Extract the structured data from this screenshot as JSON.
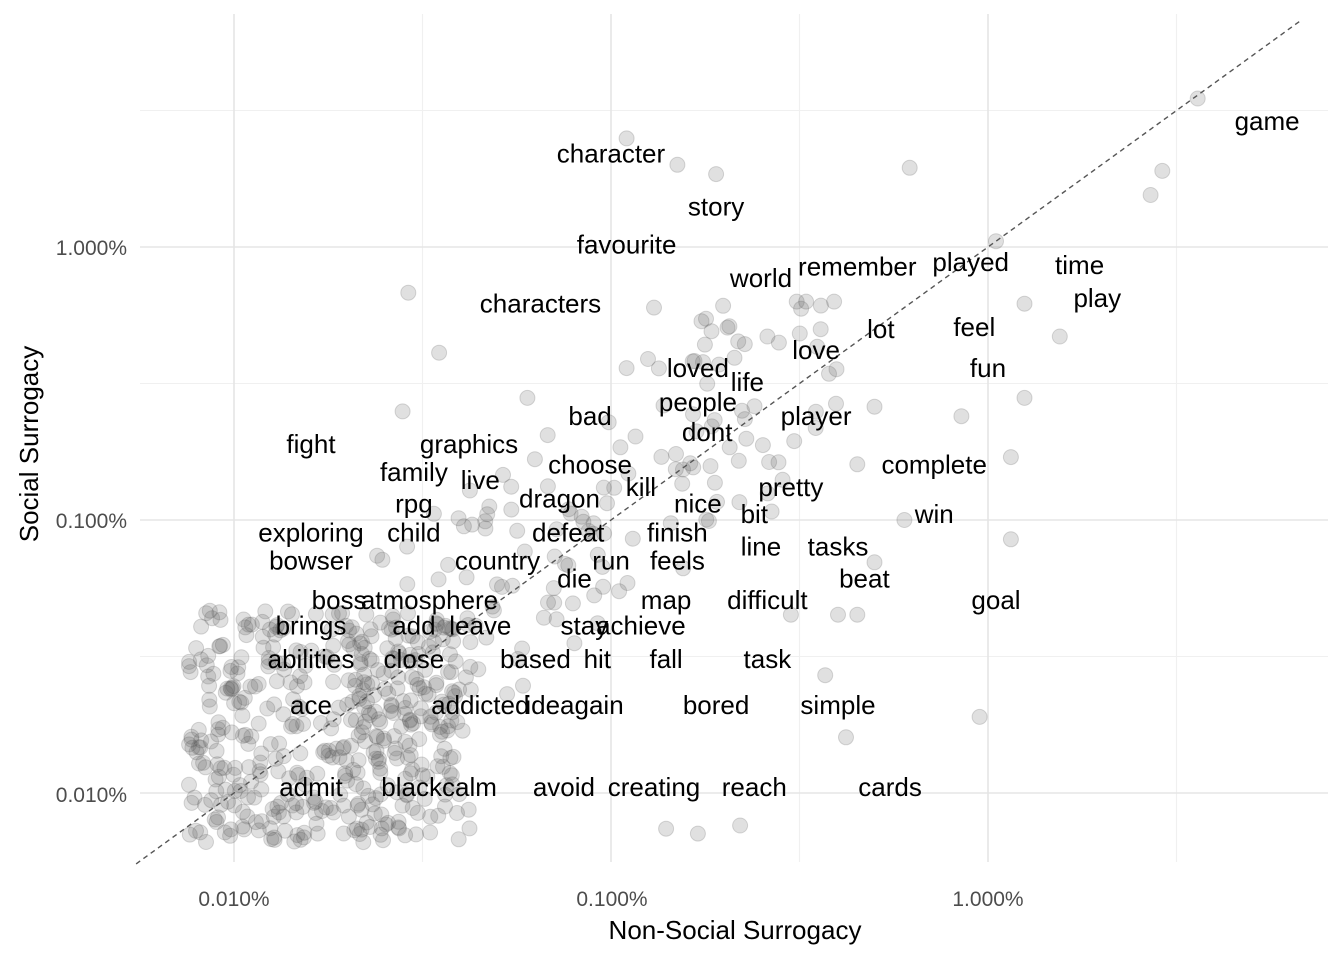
{
  "chart_data": {
    "type": "scatter",
    "title": "",
    "xlabel": "Non-Social Surrogacy",
    "ylabel": "Social Surrogacy",
    "x_scale": "log10",
    "y_scale": "log10",
    "xlim_percent": [
      0.0055,
      7.5
    ],
    "ylim_percent": [
      0.0055,
      6.5
    ],
    "x_major_ticks": [
      0.01,
      0.1,
      1.0
    ],
    "x_tick_labels": [
      "0.010%",
      "0.100%",
      "1.000%"
    ],
    "y_major_ticks": [
      0.01,
      0.1,
      1.0
    ],
    "y_tick_labels": [
      "0.010%",
      "0.100%",
      "1.000%"
    ],
    "reference_line": "y = x (dashed)",
    "labeled_words": [
      {
        "word": "game",
        "x": 5.5,
        "y": 2.9
      },
      {
        "word": "character",
        "x": 0.1,
        "y": 2.2
      },
      {
        "word": "story",
        "x": 0.19,
        "y": 1.41
      },
      {
        "word": "favourite",
        "x": 0.11,
        "y": 1.02
      },
      {
        "word": "characters",
        "x": 0.065,
        "y": 0.62
      },
      {
        "word": "world",
        "x": 0.25,
        "y": 0.77
      },
      {
        "word": "remember",
        "x": 0.45,
        "y": 0.85
      },
      {
        "word": "played",
        "x": 0.9,
        "y": 0.88
      },
      {
        "word": "time",
        "x": 1.75,
        "y": 0.86
      },
      {
        "word": "play",
        "x": 1.95,
        "y": 0.65
      },
      {
        "word": "feel",
        "x": 0.92,
        "y": 0.51
      },
      {
        "word": "lot",
        "x": 0.52,
        "y": 0.5
      },
      {
        "word": "love",
        "x": 0.35,
        "y": 0.42
      },
      {
        "word": "fun",
        "x": 1.0,
        "y": 0.36
      },
      {
        "word": "loved",
        "x": 0.17,
        "y": 0.36
      },
      {
        "word": "life",
        "x": 0.23,
        "y": 0.32
      },
      {
        "word": "bad",
        "x": 0.088,
        "y": 0.24
      },
      {
        "word": "people",
        "x": 0.17,
        "y": 0.27
      },
      {
        "word": "player",
        "x": 0.35,
        "y": 0.24
      },
      {
        "word": "dont",
        "x": 0.18,
        "y": 0.21
      },
      {
        "word": "fight",
        "x": 0.016,
        "y": 0.19
      },
      {
        "word": "graphics",
        "x": 0.042,
        "y": 0.19
      },
      {
        "word": "complete",
        "x": 0.72,
        "y": 0.16
      },
      {
        "word": "family",
        "x": 0.03,
        "y": 0.15
      },
      {
        "word": "live",
        "x": 0.045,
        "y": 0.14
      },
      {
        "word": "choose",
        "x": 0.088,
        "y": 0.16
      },
      {
        "word": "kill",
        "x": 0.12,
        "y": 0.132
      },
      {
        "word": "pretty",
        "x": 0.3,
        "y": 0.132
      },
      {
        "word": "dragon",
        "x": 0.073,
        "y": 0.12
      },
      {
        "word": "rpg",
        "x": 0.03,
        "y": 0.115
      },
      {
        "word": "nice",
        "x": 0.17,
        "y": 0.115
      },
      {
        "word": "bit",
        "x": 0.24,
        "y": 0.105
      },
      {
        "word": "win",
        "x": 0.72,
        "y": 0.105
      },
      {
        "word": "exploring",
        "x": 0.016,
        "y": 0.09
      },
      {
        "word": "child",
        "x": 0.03,
        "y": 0.09
      },
      {
        "word": "defeat",
        "x": 0.077,
        "y": 0.09
      },
      {
        "word": "finish",
        "x": 0.15,
        "y": 0.09
      },
      {
        "word": "line",
        "x": 0.25,
        "y": 0.08
      },
      {
        "word": "tasks",
        "x": 0.4,
        "y": 0.08
      },
      {
        "word": "bowser",
        "x": 0.016,
        "y": 0.071
      },
      {
        "word": "country",
        "x": 0.05,
        "y": 0.071
      },
      {
        "word": "run",
        "x": 0.1,
        "y": 0.071
      },
      {
        "word": "feels",
        "x": 0.15,
        "y": 0.071
      },
      {
        "word": "die",
        "x": 0.08,
        "y": 0.061
      },
      {
        "word": "beat",
        "x": 0.47,
        "y": 0.061
      },
      {
        "word": "boss",
        "x": 0.019,
        "y": 0.051
      },
      {
        "word": "atmosphere",
        "x": 0.033,
        "y": 0.051
      },
      {
        "word": "map",
        "x": 0.14,
        "y": 0.051
      },
      {
        "word": "difficult",
        "x": 0.26,
        "y": 0.051
      },
      {
        "word": "goal",
        "x": 1.05,
        "y": 0.051
      },
      {
        "word": "brings",
        "x": 0.016,
        "y": 0.041
      },
      {
        "word": "add",
        "x": 0.03,
        "y": 0.041
      },
      {
        "word": "leave",
        "x": 0.045,
        "y": 0.041
      },
      {
        "word": "stay",
        "x": 0.085,
        "y": 0.041
      },
      {
        "word": "achieve",
        "x": 0.12,
        "y": 0.041
      },
      {
        "word": "abilities",
        "x": 0.016,
        "y": 0.031
      },
      {
        "word": "close",
        "x": 0.03,
        "y": 0.031
      },
      {
        "word": "based",
        "x": 0.063,
        "y": 0.031
      },
      {
        "word": "hit",
        "x": 0.092,
        "y": 0.031
      },
      {
        "word": "fall",
        "x": 0.14,
        "y": 0.031
      },
      {
        "word": "task",
        "x": 0.26,
        "y": 0.031
      },
      {
        "word": "ace",
        "x": 0.016,
        "y": 0.021
      },
      {
        "word": "addicted",
        "x": 0.045,
        "y": 0.021
      },
      {
        "word": "ideagain",
        "x": 0.08,
        "y": 0.021
      },
      {
        "word": "bored",
        "x": 0.19,
        "y": 0.021
      },
      {
        "word": "simple",
        "x": 0.4,
        "y": 0.021
      },
      {
        "word": "admit",
        "x": 0.016,
        "y": 0.0105
      },
      {
        "word": "blackcalm",
        "x": 0.035,
        "y": 0.0105
      },
      {
        "word": "avoid",
        "x": 0.075,
        "y": 0.0105
      },
      {
        "word": "creating",
        "x": 0.13,
        "y": 0.0105
      },
      {
        "word": "reach",
        "x": 0.24,
        "y": 0.0105
      },
      {
        "word": "cards",
        "x": 0.55,
        "y": 0.0105
      }
    ]
  }
}
